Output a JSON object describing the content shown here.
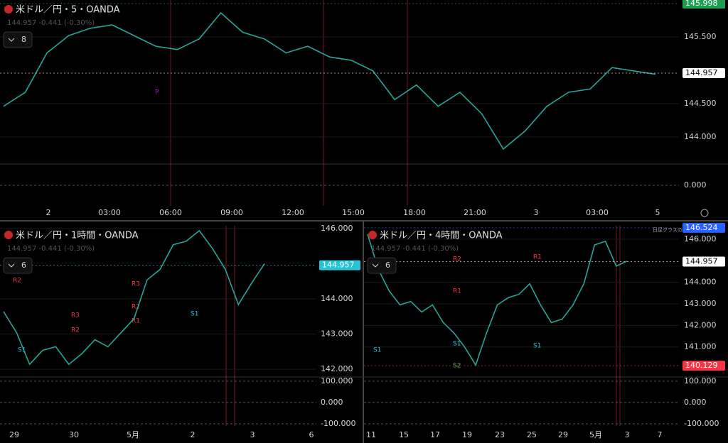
{
  "panels": [
    {
      "title": "米ドル／円・5・OANDA",
      "interval": "8",
      "change": "144.957 -0.441 (-0.30%)",
      "ylim": [
        143.606,
        146.053
      ],
      "yticks": [
        {
          "value": 144,
          "label": "144.000"
        },
        {
          "value": 144.5,
          "label": "144.500"
        },
        {
          "value": 145.5,
          "label": "145.500"
        }
      ],
      "markers": [
        {
          "value": 145.998,
          "color": "#1e9e50"
        },
        {
          "value": 144.957,
          "color": "#ffffff"
        }
      ],
      "osc_ylim": [
        -90,
        90
      ],
      "osc_ticks": [
        {
          "value": 0,
          "label": "0.000"
        }
      ],
      "time_labels": [
        "2",
        "03:00",
        "06:00",
        "09:00",
        "12:00",
        "15:00",
        "18:00",
        "21:00",
        "3",
        "03:00",
        "5"
      ],
      "notes": [
        "P"
      ],
      "prices": [
        144.46,
        144.67,
        145.26,
        145.52,
        145.63,
        145.68,
        145.52,
        145.36,
        145.31,
        145.47,
        145.86,
        145.57,
        145.47,
        145.26,
        145.36,
        145.2,
        145.15,
        144.99,
        144.56,
        144.78,
        144.46,
        144.67,
        144.35,
        143.82,
        144.09,
        144.46,
        144.67,
        144.72,
        145.04,
        144.99,
        144.94
      ]
    },
    {
      "title": "米ドル／円・1時間・OANDA",
      "interval": "6",
      "change": "144.957 -0.441 (-0.30%)",
      "ylim": [
        141.8,
        146.08
      ],
      "yticks": [
        {
          "value": 142,
          "label": "142.000"
        },
        {
          "value": 143,
          "label": "143.000"
        },
        {
          "value": 144,
          "label": "144.000"
        },
        {
          "value": 146,
          "label": "146.000"
        }
      ],
      "markers": [
        {
          "value": 144.957,
          "color": "#27c4d8"
        }
      ],
      "osc_ylim": [
        -110,
        116
      ],
      "osc_ticks": [
        {
          "value": 100,
          "label": "100.000"
        },
        {
          "value": 0,
          "label": "0.000"
        },
        {
          "value": -100,
          "label": "-100.000"
        }
      ],
      "time_labels": [
        "29",
        "30",
        "5月",
        "2",
        "3",
        "6"
      ],
      "notes": [
        "R2",
        "R3",
        "R3",
        "R2",
        "R2",
        "R1",
        "S1",
        "S1"
      ],
      "prices": [
        143.64,
        143.04,
        142.14,
        142.54,
        142.64,
        142.14,
        142.44,
        142.84,
        142.64,
        143.04,
        143.44,
        144.54,
        144.84,
        145.54,
        145.64,
        145.94,
        145.44,
        144.84,
        143.84,
        144.44,
        145.0
      ]
    },
    {
      "title": "米ドル／円・4時間・OANDA",
      "interval": "6",
      "change": "144.957 -0.441 (-0.30%)",
      "ylim": [
        139.64,
        146.62
      ],
      "yticks": [
        {
          "value": 141,
          "label": "141.000"
        },
        {
          "value": 142,
          "label": "142.000"
        },
        {
          "value": 143,
          "label": "143.000"
        },
        {
          "value": 144,
          "label": "144.000"
        },
        {
          "value": 146,
          "label": "146.000"
        }
      ],
      "markers": [
        {
          "value": 146.524,
          "color": "#2962ff"
        },
        {
          "value": 144.957,
          "color": "#ffffff"
        },
        {
          "value": 140.129,
          "color": "#f23645"
        }
      ],
      "osc_ylim": [
        -110,
        116
      ],
      "osc_ticks": [
        {
          "value": 100,
          "label": "100.000"
        },
        {
          "value": 0,
          "label": "0.000"
        },
        {
          "value": -100,
          "label": "-100.000"
        }
      ],
      "time_labels": [
        "11",
        "15",
        "17",
        "19",
        "23",
        "25",
        "29",
        "5月",
        "3",
        "7"
      ],
      "notes": [
        "R2",
        "R1",
        "R1",
        "S1",
        "S1",
        "S1",
        "S2",
        "日足クラスの直近安値"
      ],
      "prices": [
        146.23,
        144.59,
        143.6,
        142.95,
        143.11,
        142.62,
        142.95,
        142.13,
        141.64,
        140.98,
        140.16,
        141.64,
        142.95,
        143.28,
        143.44,
        143.93,
        142.95,
        142.13,
        142.29,
        142.95,
        143.93,
        145.73,
        145.9,
        144.75,
        144.98
      ]
    }
  ]
}
